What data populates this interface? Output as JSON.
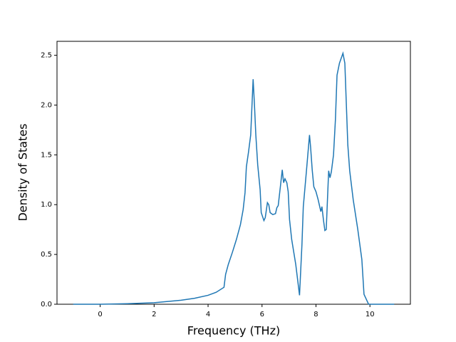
{
  "chart_data": {
    "type": "line",
    "xlabel": "Frequency (THz)",
    "ylabel": "Density of States",
    "x": [
      -1,
      0,
      1,
      2,
      3,
      3.5,
      4,
      4.3,
      4.59,
      4.65,
      4.75,
      4.9,
      5.05,
      5.2,
      5.3,
      5.37,
      5.42,
      5.5,
      5.58,
      5.67,
      5.72,
      5.77,
      5.84,
      5.93,
      5.97,
      6.07,
      6.12,
      6.2,
      6.25,
      6.3,
      6.4,
      6.5,
      6.55,
      6.6,
      6.68,
      6.75,
      6.8,
      6.85,
      6.92,
      6.97,
      7.02,
      7.1,
      7.25,
      7.39,
      7.48,
      7.53,
      7.65,
      7.76,
      7.8,
      7.86,
      7.92,
      8.0,
      8.08,
      8.18,
      8.22,
      8.28,
      8.33,
      8.38,
      8.47,
      8.52,
      8.57,
      8.65,
      8.72,
      8.78,
      8.87,
      9.0,
      9.07,
      9.18,
      9.25,
      9.38,
      9.55,
      9.7,
      9.78,
      9.95,
      10.3,
      10.9
    ],
    "series": [
      {
        "color": "#1f77b4",
        "values": [
          0,
          0.0,
          0.005,
          0.015,
          0.04,
          0.06,
          0.09,
          0.12,
          0.17,
          0.3,
          0.4,
          0.52,
          0.65,
          0.8,
          0.95,
          1.12,
          1.38,
          1.53,
          1.7,
          2.26,
          2.0,
          1.7,
          1.4,
          1.15,
          0.92,
          0.84,
          0.87,
          1.02,
          1.0,
          0.92,
          0.9,
          0.91,
          0.97,
          0.99,
          1.18,
          1.35,
          1.22,
          1.26,
          1.22,
          1.13,
          0.85,
          0.65,
          0.4,
          0.09,
          0.6,
          0.98,
          1.35,
          1.7,
          1.58,
          1.35,
          1.18,
          1.13,
          1.05,
          0.93,
          0.98,
          0.84,
          0.74,
          0.75,
          1.34,
          1.27,
          1.33,
          1.5,
          1.85,
          2.3,
          2.42,
          2.52,
          2.42,
          1.6,
          1.34,
          1.05,
          0.75,
          0.45,
          0.1,
          0.0,
          0,
          0
        ]
      }
    ],
    "xlim": [
      -1.6,
      11.5
    ],
    "xticks": [
      0,
      2,
      4,
      6,
      8,
      10
    ],
    "ylim": [
      0,
      2.64
    ],
    "yticks": [
      {
        "value": 0,
        "label": "0.0"
      },
      0.5,
      {
        "value": 1,
        "label": "1.0"
      },
      1.5,
      {
        "value": 2,
        "label": "2.0"
      },
      2.5
    ]
  }
}
